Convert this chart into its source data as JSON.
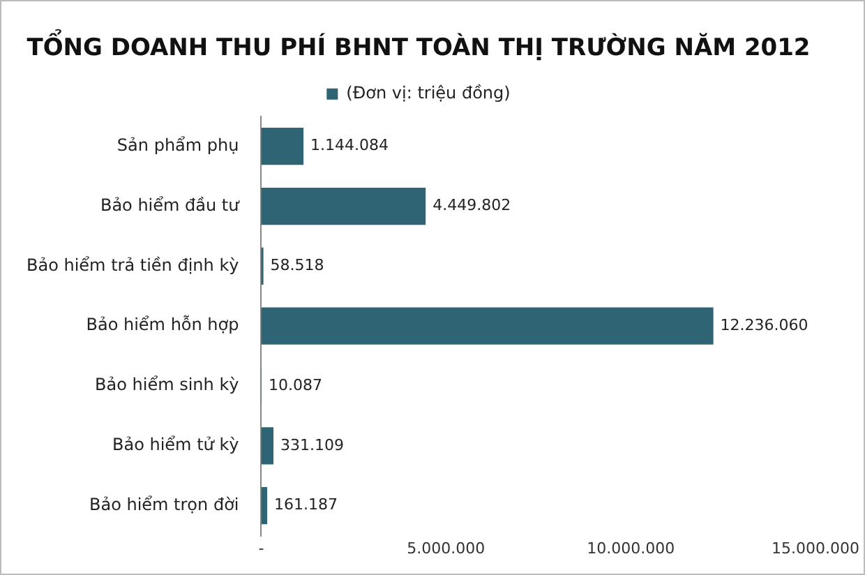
{
  "chart_data": {
    "type": "bar",
    "orientation": "horizontal",
    "title": "TỔNG DOANH THU PHÍ BHNT TOÀN THỊ TRƯỜNG NĂM 2012",
    "categories": [
      "Sản phẩm phụ",
      "Bảo hiểm đầu tư",
      "Bảo hiểm trả tiền định kỳ",
      "Bảo hiểm hỗn hợp",
      "Bảo hiểm sinh kỳ",
      "Bảo hiểm tử kỳ",
      "Bảo hiểm trọn đời"
    ],
    "series": [
      {
        "name": "(Đơn vị: triệu đồng)",
        "color": "#2e6473",
        "values": [
          1144084,
          4449802,
          58518,
          12236060,
          10087,
          331109,
          161187
        ],
        "value_labels": [
          "1.144.084",
          "4.449.802",
          "58.518",
          "12.236.060",
          "10.087",
          "331.109",
          "161.187"
        ]
      }
    ],
    "xlim": [
      0,
      15000000
    ],
    "xticks": [
      {
        "value": 0,
        "label": "-"
      },
      {
        "value": 5000000,
        "label": "5.000.000"
      },
      {
        "value": 10000000,
        "label": "10.000.000"
      },
      {
        "value": 15000000,
        "label": "15.000.000"
      }
    ],
    "grid": false,
    "legend": "top"
  }
}
